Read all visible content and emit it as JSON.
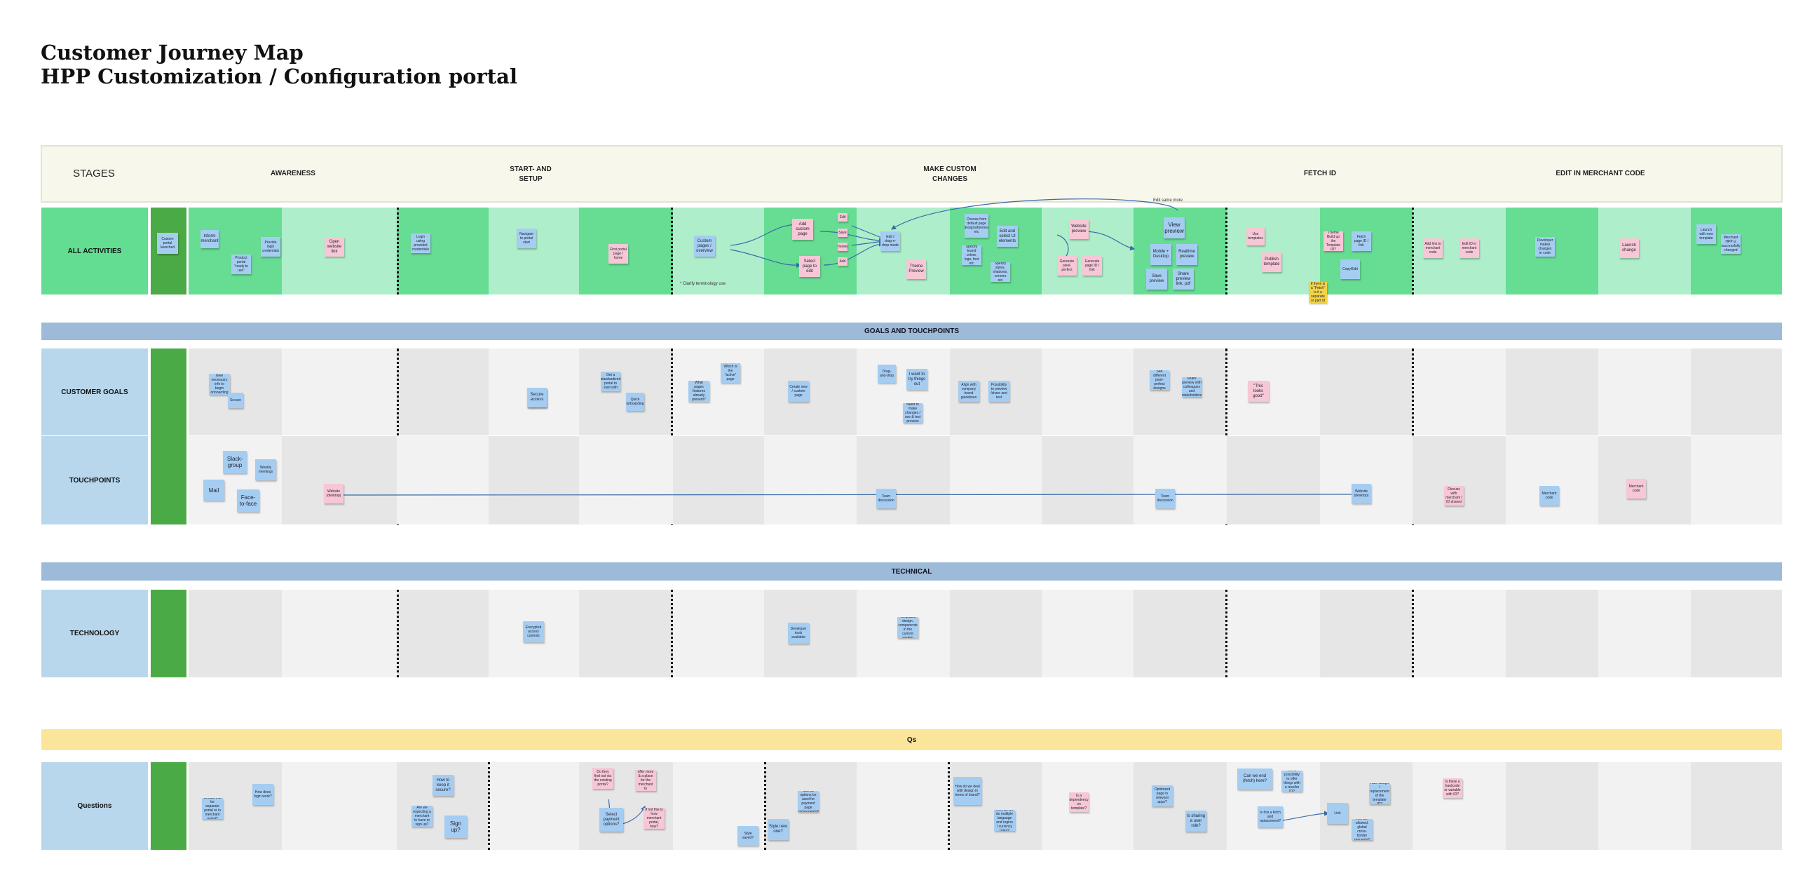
{
  "title": {
    "line1": "Customer Journey Map",
    "line2": "HPP Customization / Configuration portal"
  },
  "stages": {
    "label": "STAGES",
    "items": [
      "AWARENESS",
      "START- AND\nSETUP",
      "MAKE CUSTOM\nCHANGES",
      "FETCH ID",
      "EDIT IN MERCHANT CODE"
    ]
  },
  "activities": {
    "label": "ALL ACTIVITIES",
    "strip_note": "Custom portal launched",
    "clarify_note": "* Clarify terminology use",
    "edit_note": "Edit same more",
    "notes": [
      "Inform merchant",
      "Product portal \"ready to use\"",
      "Provide login credentials",
      "Open website link",
      "Login using provided credentials",
      "Navigate to portal start",
      "First portal page / home",
      "Custom pages / overview",
      "Add custom page",
      "Select page to edit",
      "Edit",
      "Save",
      "Preview",
      "Add",
      "Edit / drag-n-drop mode",
      "Theme Preview",
      "Choose from default page designs/themes etc",
      "Edit and select UI elements",
      "Specify brand colors, logo, font etc",
      "Specify styles, shadows, corners etc",
      "Website preview",
      "Generate pixel-perfect",
      "Generate page ID / link",
      "View preview",
      "Mobile + Desktop",
      "Realtime preview",
      "Save preview",
      "Share preview link, pdf",
      "Use templates",
      "Publish template",
      "Theme Build up the Template ID?",
      "Fetch page ID / link",
      "Copy/Edit",
      "Add link to merchant code",
      "Edit ID in merchant code",
      "Developer makes changes in code",
      "Launch change",
      "Launch with new template",
      "Merchant HPP is successfully changed",
      "If there is a \"Fetch\" is it a separate or part of"
    ]
  },
  "goals_band": "GOALS AND TOUCHPOINTS",
  "customer_goals": {
    "label": "CUSTOMER GOALS",
    "notes": [
      "Give necessary info to begin onboarding",
      "Secure",
      "Secure access",
      "Get a standardized portal to start with",
      "Quick onboarding",
      "What pages features already present?",
      "Which is the \"active\" page",
      "Create new / custom page",
      "Drag-and-drop",
      "I want to try things out",
      "Need to make changes / see & test preview",
      "Align with company brand guidelines",
      "Possibility to preview /share and test",
      "See different pixel-perfect designs",
      "Share preview with colleagues and stakeholders",
      "\"This looks good\""
    ]
  },
  "touchpoints": {
    "label": "TOUCHPOINTS",
    "notes": [
      "Slack-group",
      "Weekly meetings",
      "Mail",
      "Face-to-face",
      "Website (desktop)",
      "Team discussion",
      "Team discussion",
      "Website (desktop)",
      "Discuss with merchant / ID shared",
      "Merchant code",
      "Merchant code"
    ]
  },
  "technical_band": "TECHNICAL",
  "technology": {
    "label": "TECHNOLOGY",
    "notes": [
      "Encrypted access controls",
      "Developer tools available",
      "Templates design, components in the current system"
    ]
  },
  "questions_band": "Qs",
  "questions": {
    "label": "Questions",
    "notes": [
      "Should this be separate portal or in merchant portal?",
      "How does login work?",
      "How to keep it secure?",
      "Are we expecting a merchant to have to sign up?",
      "Sign up?",
      "Do they find out via the existing portal?",
      "Would we offer more & a place for the merchant to customize?",
      "Select payment options?",
      "If not this is how merchant portal, how?",
      "Style saved?",
      "Style new one?",
      "Can all options be used for payment page components?",
      "How do we deal with design in terms of brand?",
      "How do we do multiple language and region / currency rules?",
      "Is a dependency on template?",
      "Optimized page in relevant apps?",
      "Is sharing a user role?",
      "Can we end (fetch) here?",
      "Is it a possibility to offer things with a reseller ID?",
      "Is this a fetch and replacement?",
      "Link",
      "Auto-assign / replacement of the template ID?",
      "Are we allowed, global cross-border requests?",
      "Is there a hardcode or variable with ID?"
    ]
  },
  "colors": {
    "activity_dark": "#66dd93",
    "activity_light": "#aeeecb",
    "strip_green": "#4aaa45",
    "row_blue": "#b8d7ec",
    "band_blue": "#9dbad8",
    "band_yellow": "#fbe59a",
    "sticky_blue": "#a5cdf2",
    "sticky_pink": "#f7c7d6"
  }
}
